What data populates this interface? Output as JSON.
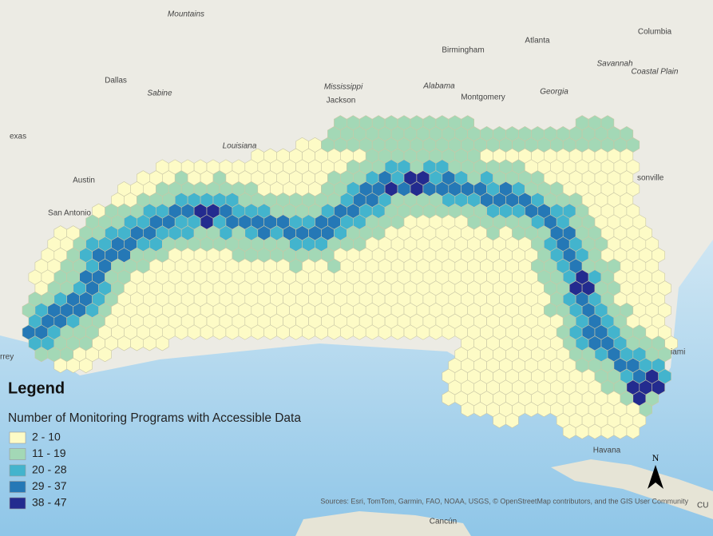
{
  "map": {
    "places": [
      "Mountains",
      "Columbia",
      "Birmingham",
      "Atlanta",
      "Dallas",
      "Sabine",
      "Mississippi",
      "Jackson",
      "Alabama",
      "Montgomery",
      "Georgia",
      "Savannah",
      "Coastal Plain",
      "exas",
      "Louisiana",
      "Austin",
      "San Antonio",
      "sonville",
      "iami",
      "rrey",
      "Havana",
      "Cancún",
      "CU"
    ],
    "attribution": "Sources: Esri, TomTom, Garmin, FAO, NOAA, USGS, © OpenStreetMap contributors, and the GIS User Community",
    "north": "N"
  },
  "legend": {
    "title": "Legend",
    "subtitle": "Number of Monitoring Programs with Accessible Data",
    "items": [
      {
        "label": "2 - 10",
        "color": "#fdfbc6"
      },
      {
        "label": "11 - 19",
        "color": "#a3d8b6"
      },
      {
        "label": "20 - 28",
        "color": "#43b4cd"
      },
      {
        "label": "29 - 37",
        "color": "#2578b6"
      },
      {
        "label": "38 - 47",
        "color": "#232b8f"
      }
    ]
  }
}
